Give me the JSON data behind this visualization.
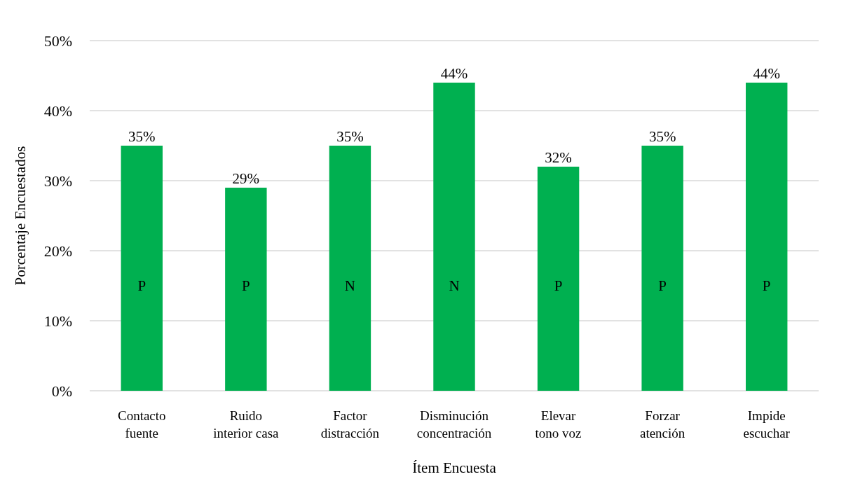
{
  "chart_data": {
    "type": "bar",
    "xlabel": "Ítem Encuesta",
    "ylabel": "Porcentaje Encuestados",
    "categories": [
      "Contacto fuente",
      "Ruido interior casa",
      "Factor distracción",
      "Disminución concentración",
      "Elevar tono voz",
      "Forzar atención",
      "Impide escuchar"
    ],
    "values": [
      35,
      29,
      35,
      44,
      32,
      35,
      44
    ],
    "value_labels": [
      "35%",
      "29%",
      "35%",
      "44%",
      "32%",
      "35%",
      "44%"
    ],
    "color": "#00b050",
    "ylim": [
      0,
      50
    ],
    "yticks": [
      {
        "value": 0,
        "label": "0%"
      },
      {
        "value": 10,
        "label": "10%"
      },
      {
        "value": 20,
        "label": "20%"
      },
      {
        "value": 30,
        "label": "30%"
      },
      {
        "value": 40,
        "label": "40%"
      },
      {
        "value": 50,
        "label": "50%"
      }
    ],
    "grid": "y",
    "annotations": [
      "P",
      "P",
      "N",
      "N",
      "P",
      "P",
      "P"
    ]
  }
}
